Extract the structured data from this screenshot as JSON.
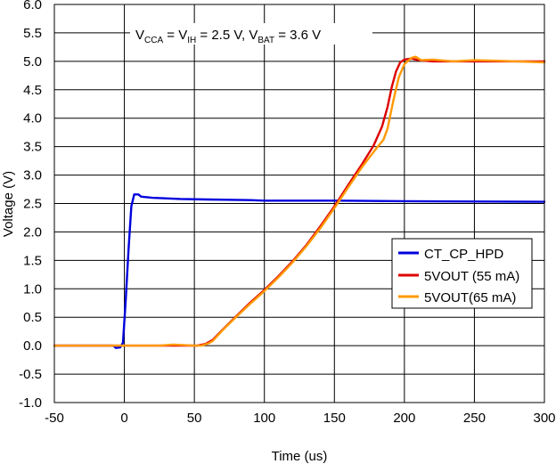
{
  "chart_data": {
    "type": "line",
    "title": "",
    "annotation": {
      "vcc_base": "V",
      "vcc_sub": "CCA",
      "eq1": " = V",
      "vih_sub": "IH",
      "rest1": " = 2.5 V, V",
      "vbat_sub": "BAT",
      "rest2": " = 3.6 V"
    },
    "xlabel": "Time (us)",
    "ylabel": "Voltage (V)",
    "xlim": [
      -50,
      300
    ],
    "ylim": [
      -1.0,
      6.0
    ],
    "xticks": [
      -50,
      0,
      50,
      100,
      150,
      200,
      250,
      300
    ],
    "xtick_labels": [
      "-50",
      "0",
      "50",
      "100",
      "150",
      "200",
      "250",
      "300"
    ],
    "yticks": [
      -1.0,
      -0.5,
      0.0,
      0.5,
      1.0,
      1.5,
      2.0,
      2.5,
      3.0,
      3.5,
      4.0,
      4.5,
      5.0,
      5.5,
      6.0
    ],
    "ytick_labels": [
      "-1.0",
      "-0.5",
      "0.0",
      "0.5",
      "1.0",
      "1.5",
      "2.0",
      "2.5",
      "3.0",
      "3.5",
      "4.0",
      "4.5",
      "5.0",
      "5.5",
      "6.0"
    ],
    "grid": true,
    "legend_position": "right-middle",
    "series": [
      {
        "name": "CT_CP_HPD",
        "color": "#0000dd",
        "points": [
          [
            -50,
            0.0
          ],
          [
            -8,
            0.0
          ],
          [
            -6,
            -0.04
          ],
          [
            -3,
            -0.03
          ],
          [
            -1,
            0.05
          ],
          [
            1,
            0.8
          ],
          [
            3,
            1.7
          ],
          [
            5,
            2.45
          ],
          [
            7,
            2.66
          ],
          [
            10,
            2.66
          ],
          [
            12,
            2.62
          ],
          [
            20,
            2.6
          ],
          [
            40,
            2.58
          ],
          [
            60,
            2.57
          ],
          [
            90,
            2.56
          ],
          [
            100,
            2.55
          ],
          [
            150,
            2.55
          ],
          [
            200,
            2.54
          ],
          [
            300,
            2.53
          ]
        ]
      },
      {
        "name": "5VOUT (55 mA)",
        "color": "#dd0000",
        "points": [
          [
            -50,
            0.0
          ],
          [
            40,
            0.0
          ],
          [
            52,
            0.0
          ],
          [
            58,
            0.03
          ],
          [
            63,
            0.1
          ],
          [
            70,
            0.28
          ],
          [
            80,
            0.52
          ],
          [
            90,
            0.76
          ],
          [
            100,
            0.98
          ],
          [
            110,
            1.22
          ],
          [
            120,
            1.48
          ],
          [
            130,
            1.77
          ],
          [
            140,
            2.1
          ],
          [
            150,
            2.45
          ],
          [
            160,
            2.83
          ],
          [
            170,
            3.2
          ],
          [
            178,
            3.52
          ],
          [
            184,
            3.85
          ],
          [
            188,
            4.2
          ],
          [
            191,
            4.55
          ],
          [
            194,
            4.82
          ],
          [
            197,
            4.98
          ],
          [
            200,
            5.03
          ],
          [
            205,
            5.05
          ],
          [
            210,
            5.02
          ],
          [
            220,
            5.0
          ],
          [
            240,
            5.0
          ],
          [
            260,
            5.0
          ],
          [
            280,
            5.0
          ],
          [
            300,
            5.0
          ]
        ]
      },
      {
        "name": "5VOUT(65 mA)",
        "color": "#ff9900",
        "points": [
          [
            -50,
            0.0
          ],
          [
            25,
            0.0
          ],
          [
            35,
            0.02
          ],
          [
            50,
            0.0
          ],
          [
            55,
            0.0
          ],
          [
            60,
            0.04
          ],
          [
            63,
            0.08
          ],
          [
            70,
            0.27
          ],
          [
            80,
            0.51
          ],
          [
            90,
            0.74
          ],
          [
            100,
            0.96
          ],
          [
            110,
            1.2
          ],
          [
            120,
            1.46
          ],
          [
            130,
            1.75
          ],
          [
            140,
            2.07
          ],
          [
            150,
            2.42
          ],
          [
            160,
            2.79
          ],
          [
            170,
            3.15
          ],
          [
            180,
            3.47
          ],
          [
            185,
            3.62
          ],
          [
            188,
            3.82
          ],
          [
            192,
            4.3
          ],
          [
            196,
            4.72
          ],
          [
            200,
            4.95
          ],
          [
            205,
            5.06
          ],
          [
            208,
            5.08
          ],
          [
            212,
            5.02
          ],
          [
            220,
            5.03
          ],
          [
            235,
            5.0
          ],
          [
            250,
            5.02
          ],
          [
            265,
            5.01
          ],
          [
            280,
            5.0
          ],
          [
            300,
            4.98
          ]
        ]
      }
    ]
  }
}
